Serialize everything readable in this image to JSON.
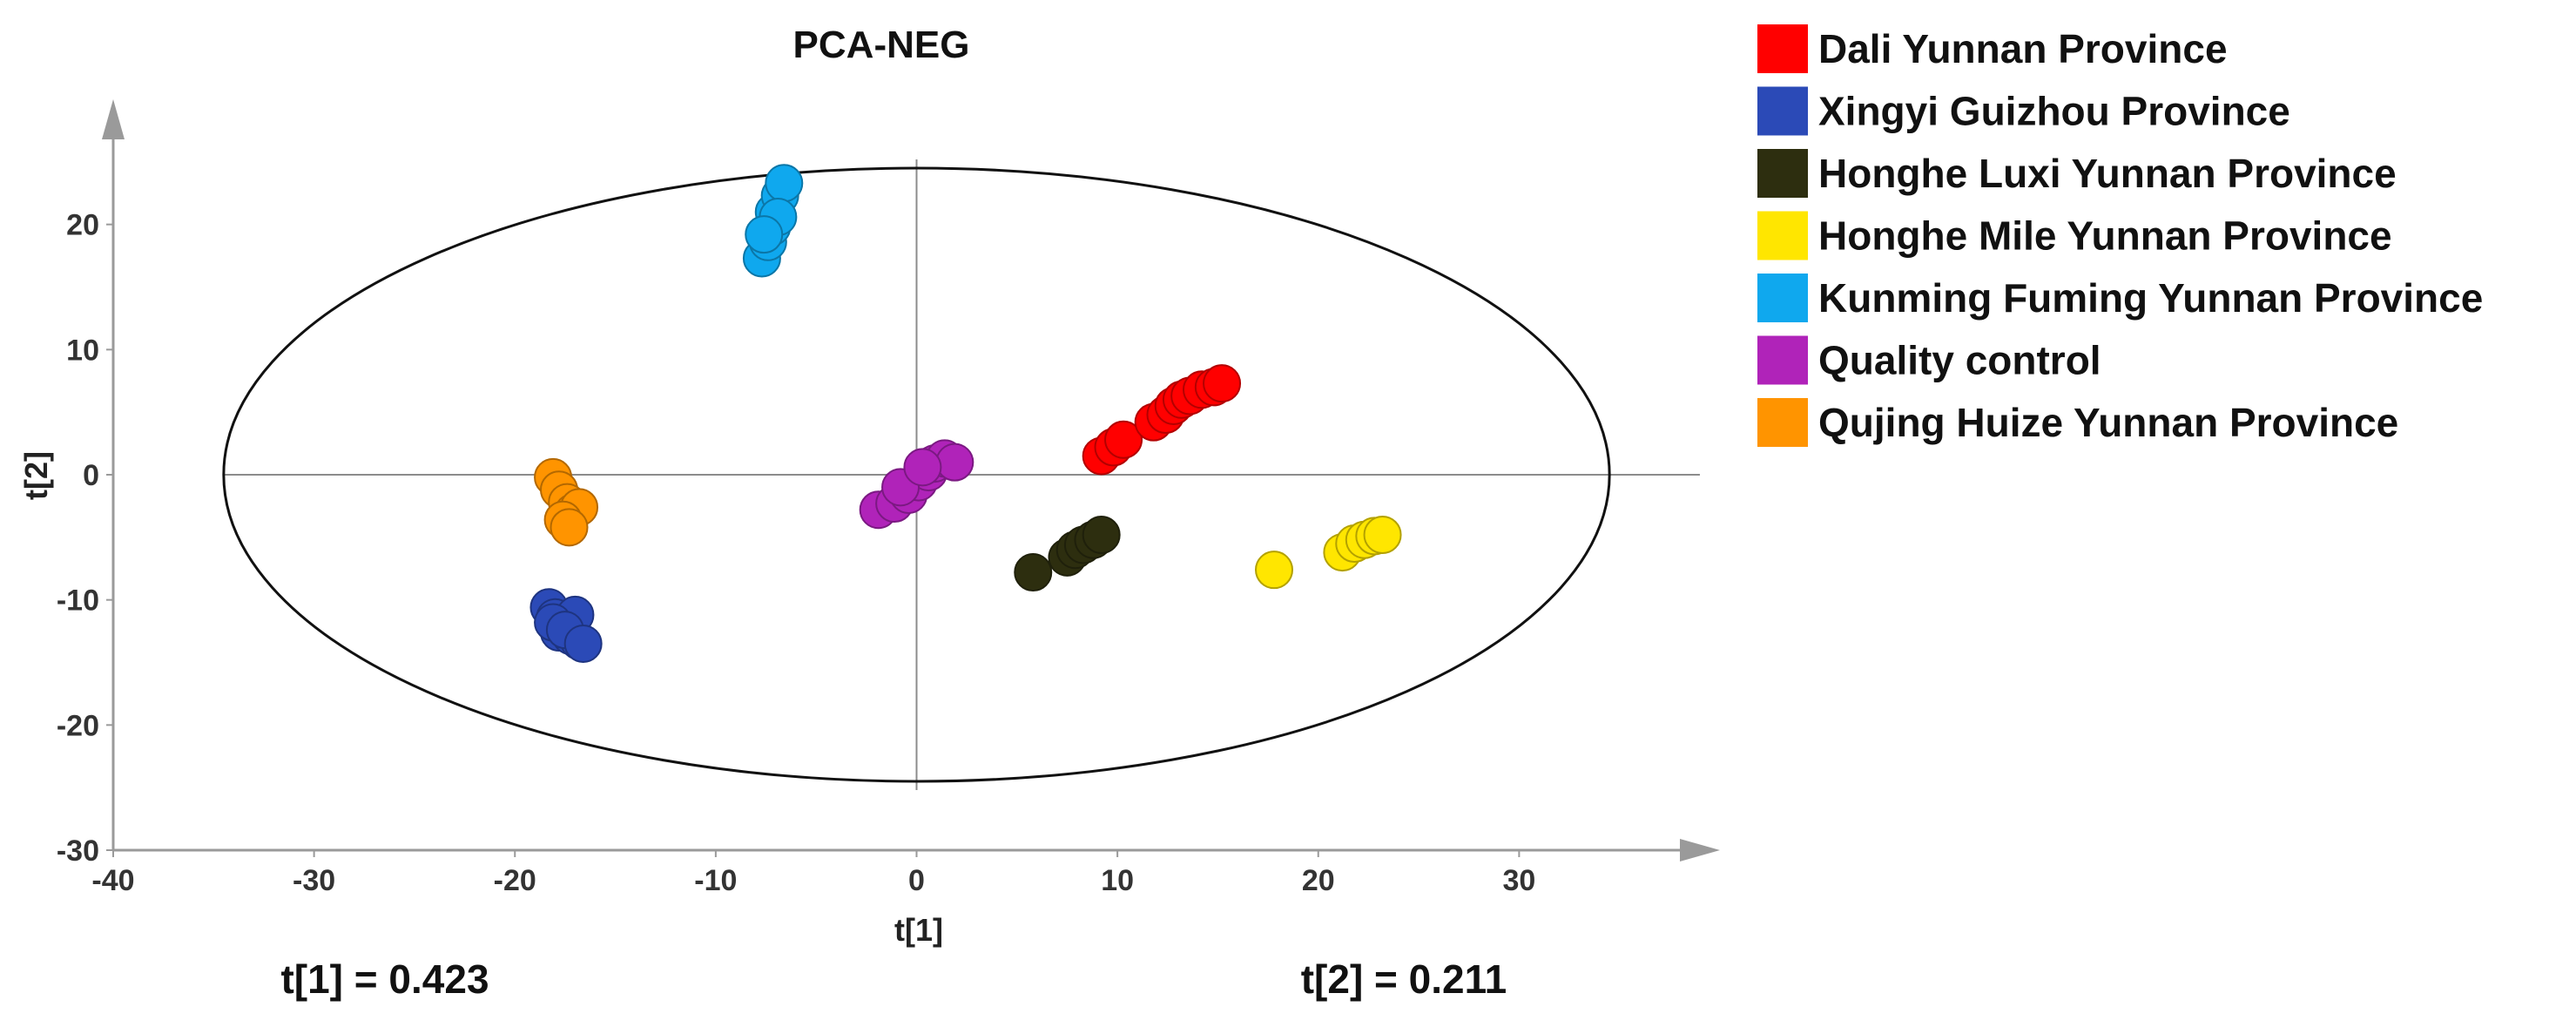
{
  "chart_data": {
    "type": "scatter",
    "title": "PCA-NEG",
    "xlabel": "t[1]",
    "ylabel": "t[2]",
    "xlim": [
      -40,
      40
    ],
    "ylim": [
      -30,
      30
    ],
    "x_ticks": [
      -40,
      -30,
      -20,
      -10,
      0,
      10,
      20,
      30
    ],
    "y_ticks": [
      -30,
      -20,
      -10,
      0,
      10,
      20
    ],
    "grid": false,
    "legend_position": "right",
    "ellipse": {
      "center": [
        0,
        0
      ],
      "radius_x": 34.5,
      "radius_y": 24.5
    },
    "variance": {
      "t1": "t[1] = 0.423",
      "t2": "t[2] = 0.211"
    },
    "series": [
      {
        "name": "Dali Yunnan Province",
        "color": "#ff0000",
        "x": [
          9.2,
          9.8,
          10.3,
          11.8,
          12.4,
          12.8,
          13.2,
          13.6,
          14.2,
          14.8,
          15.2
        ],
        "y": [
          1.5,
          2.2,
          2.8,
          4.2,
          4.8,
          5.5,
          6.0,
          6.3,
          6.8,
          7.0,
          7.3
        ]
      },
      {
        "name": "Xingyi Guizhou Province",
        "color": "#2b4ab7",
        "x": [
          -18.3,
          -18.0,
          -17.6,
          -17.8,
          -17.2,
          -16.8,
          -17.0,
          -18.1,
          -17.5,
          -16.6
        ],
        "y": [
          -10.6,
          -11.4,
          -12.0,
          -12.6,
          -12.9,
          -13.3,
          -11.2,
          -11.8,
          -12.4,
          -13.5
        ]
      },
      {
        "name": "Honghe Luxi Yunnan Province",
        "color": "#2d2e0f",
        "x": [
          5.8,
          7.5,
          7.9,
          8.3,
          8.8,
          9.2
        ],
        "y": [
          -7.8,
          -6.6,
          -6.0,
          -5.6,
          -5.2,
          -4.8
        ]
      },
      {
        "name": "Honghe Mile Yunnan Province",
        "color": "#ffe600",
        "x": [
          17.8,
          21.2,
          21.8,
          22.3,
          22.8,
          23.2
        ],
        "y": [
          -7.6,
          -6.2,
          -5.5,
          -5.2,
          -4.9,
          -4.8
        ]
      },
      {
        "name": "Kunming Fuming Yunnan Province",
        "color": "#0fa8ee",
        "x": [
          -7.7,
          -7.4,
          -7.2,
          -7.1,
          -6.8,
          -6.6,
          -6.9,
          -7.6
        ],
        "y": [
          17.3,
          18.6,
          19.8,
          21.0,
          22.3,
          23.3,
          20.6,
          19.2
        ]
      },
      {
        "name": "Quality control",
        "color": "#b023b9",
        "x": [
          -1.9,
          -1.1,
          -0.4,
          0.1,
          0.6,
          0.9,
          1.4,
          1.9,
          -0.8,
          0.3
        ],
        "y": [
          -2.8,
          -2.3,
          -1.6,
          -0.6,
          0.2,
          0.9,
          1.3,
          1.0,
          -1.0,
          0.6
        ]
      },
      {
        "name": "Qujing Huize Yunnan Province",
        "color": "#ff9400",
        "x": [
          -18.1,
          -17.8,
          -17.4,
          -17.1,
          -16.8,
          -17.6,
          -17.3
        ],
        "y": [
          -0.2,
          -1.2,
          -2.2,
          -3.0,
          -2.6,
          -3.6,
          -4.2
        ]
      }
    ]
  }
}
